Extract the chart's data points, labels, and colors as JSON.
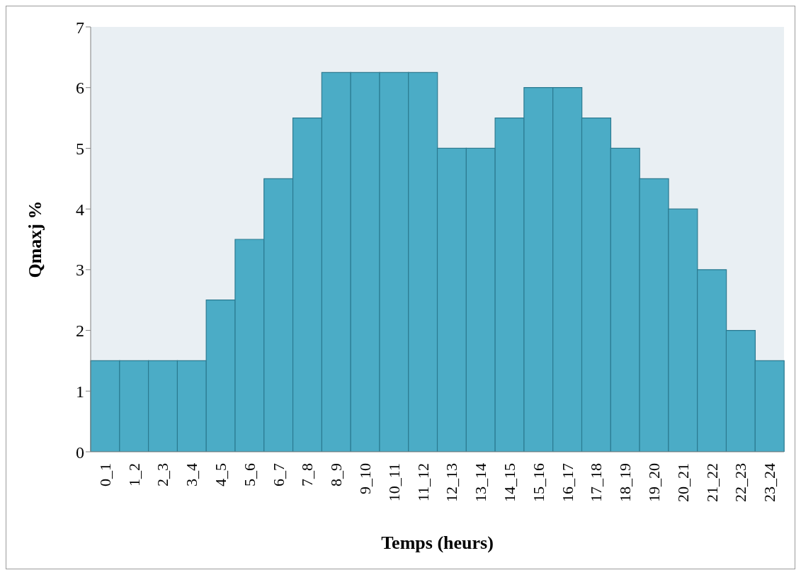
{
  "chart_data": {
    "type": "bar",
    "xlabel": "Temps (heurs)",
    "ylabel": "Qmaxj %",
    "categories": [
      "0_1",
      "1_2",
      "2_3",
      "3_4",
      "4_5",
      "5_6",
      "6_7",
      "7_8",
      "8_9",
      "9_10",
      "10_11",
      "11_12",
      "12_13",
      "13_14",
      "14_15",
      "15_16",
      "16_17",
      "17_18",
      "18_19",
      "19_20",
      "20_21",
      "21_22",
      "22_23",
      "23_24"
    ],
    "values": [
      1.5,
      1.5,
      1.5,
      1.5,
      2.5,
      3.5,
      4.5,
      5.5,
      6.25,
      6.25,
      6.25,
      6.25,
      5,
      5,
      5.5,
      6,
      6,
      5.5,
      5,
      4.5,
      4,
      3,
      2,
      1.5
    ],
    "color": "#4bacc6",
    "ylim": [
      0,
      7
    ],
    "yticks": [
      0,
      1,
      2,
      3,
      4,
      5,
      6,
      7
    ],
    "grid": false,
    "legend": false
  }
}
